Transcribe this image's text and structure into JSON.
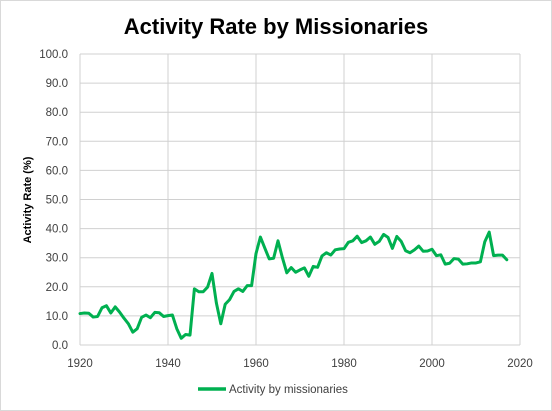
{
  "chart_data": {
    "type": "line",
    "title": "Activity Rate by Missionaries",
    "xlabel": "",
    "ylabel": "Activity Rate (%)",
    "xlim": [
      1920,
      2020
    ],
    "ylim": [
      0,
      100
    ],
    "x_ticks": [
      "1920",
      "1940",
      "1960",
      "1980",
      "2000",
      "2020"
    ],
    "y_ticks": [
      "0.0",
      "10.0",
      "20.0",
      "30.0",
      "40.0",
      "50.0",
      "60.0",
      "70.0",
      "80.0",
      "90.0",
      "100.0"
    ],
    "grid": true,
    "legend": "bottom",
    "series": [
      {
        "name": "Activity by missionaries",
        "color": "#00b050",
        "points": [
          [
            1920,
            10.8
          ],
          [
            1921,
            11.0
          ],
          [
            1922,
            10.9
          ],
          [
            1923,
            9.6
          ],
          [
            1924,
            9.8
          ],
          [
            1925,
            12.8
          ],
          [
            1926,
            13.5
          ],
          [
            1927,
            11.0
          ],
          [
            1928,
            13.1
          ],
          [
            1929,
            11.3
          ],
          [
            1930,
            9.2
          ],
          [
            1931,
            7.3
          ],
          [
            1932,
            4.4
          ],
          [
            1933,
            5.6
          ],
          [
            1934,
            9.5
          ],
          [
            1935,
            10.3
          ],
          [
            1936,
            9.4
          ],
          [
            1937,
            11.2
          ],
          [
            1938,
            11.1
          ],
          [
            1939,
            9.8
          ],
          [
            1940,
            10.1
          ],
          [
            1941,
            10.3
          ],
          [
            1942,
            5.6
          ],
          [
            1943,
            2.3
          ],
          [
            1944,
            3.6
          ],
          [
            1945,
            3.4
          ],
          [
            1946,
            19.3
          ],
          [
            1947,
            18.3
          ],
          [
            1948,
            18.3
          ],
          [
            1949,
            19.9
          ],
          [
            1950,
            24.6
          ],
          [
            1951,
            14.4
          ],
          [
            1952,
            7.3
          ],
          [
            1953,
            14.0
          ],
          [
            1954,
            15.6
          ],
          [
            1955,
            18.4
          ],
          [
            1956,
            19.3
          ],
          [
            1957,
            18.4
          ],
          [
            1958,
            20.4
          ],
          [
            1959,
            20.4
          ],
          [
            1960,
            31.4
          ],
          [
            1961,
            37.1
          ],
          [
            1962,
            33.3
          ],
          [
            1963,
            29.6
          ],
          [
            1964,
            29.8
          ],
          [
            1965,
            35.8
          ],
          [
            1966,
            30.0
          ],
          [
            1967,
            24.8
          ],
          [
            1968,
            26.6
          ],
          [
            1969,
            25.0
          ],
          [
            1970,
            25.8
          ],
          [
            1971,
            26.5
          ],
          [
            1972,
            23.6
          ],
          [
            1973,
            27.0
          ],
          [
            1974,
            26.7
          ],
          [
            1975,
            30.6
          ],
          [
            1976,
            31.7
          ],
          [
            1977,
            30.9
          ],
          [
            1978,
            32.7
          ],
          [
            1979,
            33.0
          ],
          [
            1980,
            33.1
          ],
          [
            1981,
            35.3
          ],
          [
            1982,
            35.8
          ],
          [
            1983,
            37.4
          ],
          [
            1984,
            35.2
          ],
          [
            1985,
            35.8
          ],
          [
            1986,
            37.1
          ],
          [
            1987,
            34.6
          ],
          [
            1988,
            35.6
          ],
          [
            1989,
            38.0
          ],
          [
            1990,
            37.0
          ],
          [
            1991,
            33.2
          ],
          [
            1992,
            37.3
          ],
          [
            1993,
            35.6
          ],
          [
            1994,
            32.4
          ],
          [
            1995,
            31.7
          ],
          [
            1996,
            32.7
          ],
          [
            1997,
            34.0
          ],
          [
            1998,
            32.2
          ],
          [
            1999,
            32.3
          ],
          [
            2000,
            32.9
          ],
          [
            2001,
            30.7
          ],
          [
            2002,
            31.0
          ],
          [
            2003,
            27.8
          ],
          [
            2004,
            28.1
          ],
          [
            2005,
            29.7
          ],
          [
            2006,
            29.5
          ],
          [
            2007,
            27.8
          ],
          [
            2008,
            27.9
          ],
          [
            2009,
            28.2
          ],
          [
            2010,
            28.2
          ],
          [
            2011,
            28.6
          ],
          [
            2012,
            35.5
          ],
          [
            2013,
            38.8
          ],
          [
            2014,
            30.7
          ],
          [
            2015,
            30.9
          ],
          [
            2016,
            30.9
          ],
          [
            2017,
            29.3
          ]
        ]
      }
    ]
  }
}
